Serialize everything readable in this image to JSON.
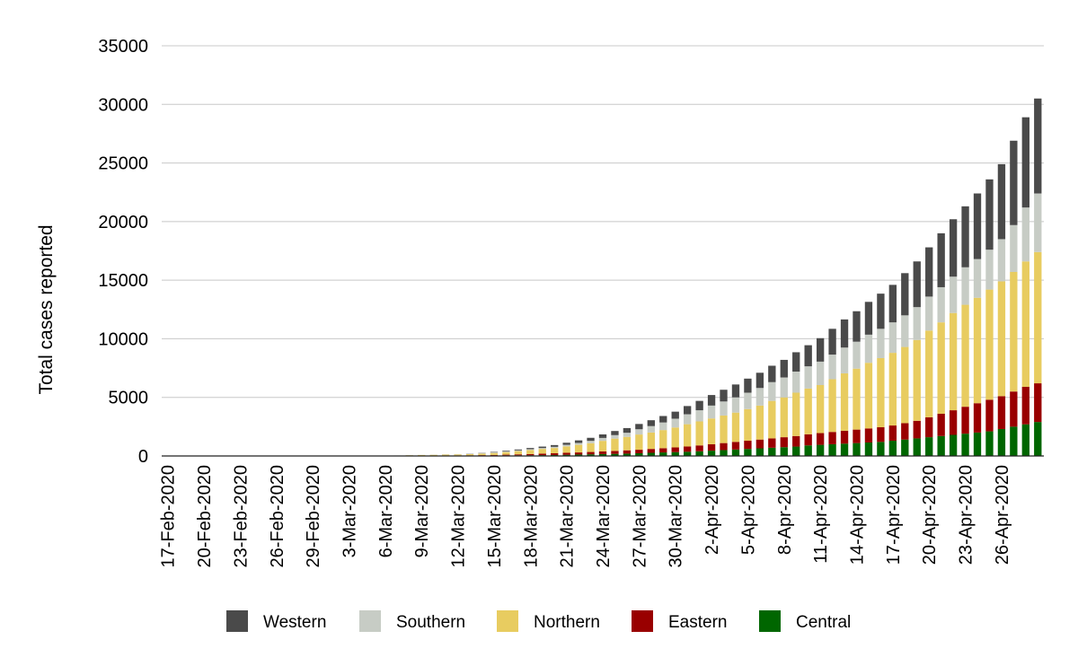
{
  "chart_data": {
    "type": "bar",
    "stacked": true,
    "title": "",
    "xlabel": "",
    "ylabel": "Total cases reported",
    "ylim": [
      0,
      35000
    ],
    "yticks": [
      "0",
      "5000",
      "10000",
      "15000",
      "20000",
      "25000",
      "30000",
      "35000"
    ],
    "grid": true,
    "legend_position": "bottom",
    "start_date": "2020-02-17",
    "end_date": "2020-04-29",
    "x_tick_labels": [
      "17-Feb-2020",
      "20-Feb-2020",
      "23-Feb-2020",
      "26-Feb-2020",
      "29-Feb-2020",
      "3-Mar-2020",
      "6-Mar-2020",
      "9-Mar-2020",
      "12-Mar-2020",
      "15-Mar-2020",
      "18-Mar-2020",
      "21-Mar-2020",
      "24-Mar-2020",
      "27-Mar-2020",
      "30-Mar-2020",
      "2-Apr-2020",
      "5-Apr-2020",
      "8-Apr-2020",
      "11-Apr-2020",
      "14-Apr-2020",
      "17-Apr-2020",
      "20-Apr-2020",
      "23-Apr-2020",
      "26-Apr-2020"
    ],
    "legend_order": [
      "Western",
      "Southern",
      "Northern",
      "Eastern",
      "Central"
    ],
    "series": [
      {
        "name": "Central",
        "color": "#006600",
        "values": [
          0,
          0,
          0,
          0,
          0,
          0,
          0,
          0,
          0,
          0,
          0,
          0,
          0,
          0,
          0,
          0,
          0,
          0,
          0,
          5,
          10,
          15,
          20,
          25,
          30,
          35,
          40,
          45,
          50,
          55,
          60,
          70,
          80,
          100,
          120,
          140,
          160,
          180,
          200,
          230,
          270,
          300,
          330,
          360,
          400,
          450,
          500,
          550,
          600,
          650,
          700,
          750,
          800,
          900,
          950,
          1000,
          1050,
          1100,
          1150,
          1200,
          1300,
          1400,
          1500,
          1600,
          1700,
          1800,
          1900,
          2000,
          2100,
          2300,
          2500,
          2700,
          2900
        ]
      },
      {
        "name": "Eastern",
        "color": "#990000",
        "values": [
          0,
          0,
          0,
          0,
          0,
          0,
          0,
          0,
          0,
          0,
          0,
          0,
          0,
          0,
          0,
          0,
          0,
          0,
          0,
          2,
          4,
          6,
          8,
          10,
          15,
          20,
          30,
          40,
          60,
          80,
          100,
          130,
          150,
          170,
          180,
          200,
          230,
          250,
          280,
          300,
          330,
          360,
          400,
          450,
          500,
          550,
          600,
          650,
          700,
          750,
          800,
          850,
          900,
          950,
          1000,
          1050,
          1100,
          1150,
          1200,
          1250,
          1300,
          1400,
          1500,
          1700,
          1900,
          2100,
          2300,
          2500,
          2700,
          2800,
          3000,
          3200,
          3300
        ]
      },
      {
        "name": "Northern",
        "color": "#e8cc60",
        "values": [
          0,
          0,
          0,
          0,
          0,
          0,
          0,
          0,
          0,
          0,
          0,
          0,
          0,
          0,
          0,
          0,
          0,
          0,
          0,
          30,
          50,
          60,
          70,
          80,
          90,
          100,
          130,
          170,
          220,
          280,
          350,
          400,
          450,
          550,
          650,
          750,
          900,
          1050,
          1150,
          1300,
          1400,
          1550,
          1700,
          1900,
          2050,
          2200,
          2350,
          2500,
          2700,
          2900,
          3200,
          3400,
          3700,
          3900,
          4100,
          4500,
          4900,
          5200,
          5600,
          5900,
          6200,
          6500,
          6900,
          7400,
          7800,
          8300,
          8700,
          9000,
          9400,
          9800,
          10200,
          10700,
          11200
        ]
      },
      {
        "name": "Southern",
        "color": "#c7ccc5",
        "values": [
          0,
          0,
          0,
          0,
          0,
          0,
          0,
          0,
          0,
          0,
          0,
          0,
          0,
          0,
          0,
          0,
          0,
          0,
          0,
          5,
          10,
          10,
          15,
          20,
          25,
          35,
          45,
          50,
          55,
          60,
          70,
          80,
          100,
          130,
          160,
          200,
          250,
          300,
          350,
          450,
          550,
          650,
          750,
          850,
          950,
          1100,
          1200,
          1300,
          1400,
          1500,
          1600,
          1700,
          1800,
          1900,
          2000,
          2100,
          2200,
          2300,
          2400,
          2500,
          2600,
          2700,
          2800,
          2900,
          3000,
          3100,
          3200,
          3300,
          3400,
          3600,
          4000,
          4600,
          5000
        ]
      },
      {
        "name": "Western",
        "color": "#4a4a4a",
        "values": [
          0,
          0,
          0,
          0,
          0,
          0,
          0,
          0,
          0,
          0,
          0,
          0,
          0,
          0,
          0,
          0,
          0,
          0,
          0,
          0,
          0,
          0,
          0,
          0,
          0,
          10,
          20,
          40,
          60,
          80,
          100,
          120,
          150,
          180,
          220,
          260,
          300,
          350,
          400,
          450,
          500,
          550,
          600,
          700,
          800,
          900,
          1000,
          1100,
          1200,
          1300,
          1400,
          1500,
          1650,
          1800,
          2000,
          2200,
          2400,
          2600,
          2800,
          3000,
          3200,
          3600,
          3900,
          4200,
          4600,
          4900,
          5200,
          5600,
          6000,
          6400,
          7200,
          7700,
          8100
        ]
      }
    ]
  }
}
